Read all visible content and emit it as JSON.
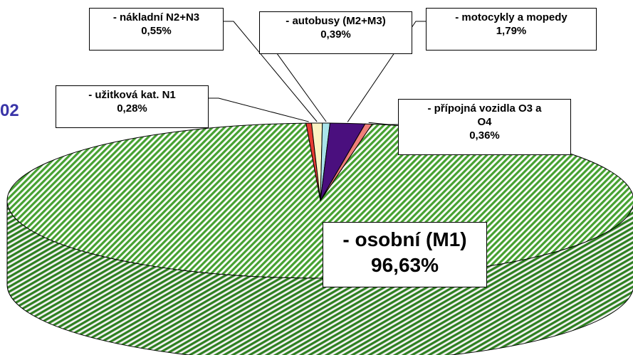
{
  "stray_title_fragment": "02",
  "chart_data": {
    "type": "pie",
    "style": "3d-exploded",
    "slices": [
      {
        "label": "- osobní (M1)",
        "value": 96.63,
        "display": "96,63%",
        "color": "#49a033",
        "pattern": "diagonal-stripes"
      },
      {
        "label": "- užitková kat. N1",
        "value": 0.28,
        "display": "0,28%",
        "color": "#e53a33"
      },
      {
        "label": "- nákladní N2+N3",
        "value": 0.55,
        "display": "0,55%",
        "color": "#fbf3c4"
      },
      {
        "label": "- autobusy (M2+M3)",
        "value": 0.39,
        "display": "0,39%",
        "color": "#a9e4ea"
      },
      {
        "label": "- motocykly a mopedy",
        "value": 1.79,
        "display": "1,79%",
        "color": "#4a0f7e"
      },
      {
        "label": "- přípojná vozidla O3 a O4",
        "label_lines": [
          "- přípojná vozidla O3 a",
          "O4"
        ],
        "value": 0.36,
        "display": "0,36%",
        "color": "#f07f79"
      }
    ]
  }
}
